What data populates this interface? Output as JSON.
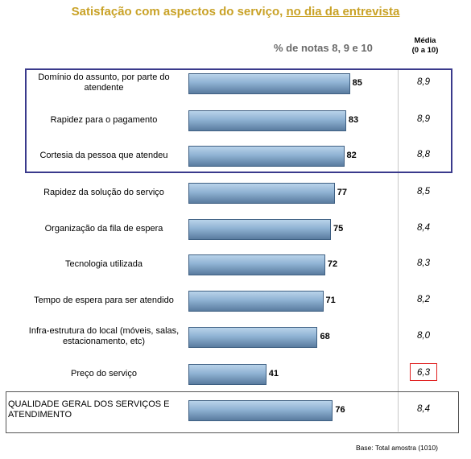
{
  "title_part1": "Satisfação com aspectos do serviço, ",
  "title_part2": "no dia da entrevista",
  "subtitle": "% de notas 8, 9 e 10",
  "media_header_1": "Média",
  "media_header_2": "(0 a 10)",
  "base_note": "Base:  Total amostra (1010)",
  "colors": {
    "title": "#C9A227",
    "bar": "#8fb2d3",
    "highlight_box": "#3a3a8c",
    "avg_highlight": "#e02020"
  },
  "chart_data": {
    "type": "bar",
    "orientation": "horizontal",
    "categories": [
      "Domínio do assunto, por parte do atendente",
      "Rapidez para o pagamento",
      "Cortesia da pessoa que atendeu",
      "Rapidez da solução do serviço",
      "Organização da fila de espera",
      "Tecnologia utilizada",
      "Tempo de espera para ser atendido",
      "Infra-estrutura do local (móveis, salas, estacionamento, etc)",
      "Preço do serviço",
      "QUALIDADE GERAL DOS SERVIÇOS E ATENDIMENTO"
    ],
    "values": [
      85,
      83,
      82,
      77,
      75,
      72,
      71,
      68,
      41,
      76
    ],
    "value_labels": [
      "85",
      "83",
      "82",
      "77",
      "75",
      "72",
      "71",
      "68",
      "41",
      "76"
    ],
    "averages": [
      "8,9",
      "8,9",
      "8,8",
      "8,5",
      "8,4",
      "8,3",
      "8,2",
      "8,0",
      "6,3",
      "8,4"
    ],
    "xlim": [
      0,
      100
    ]
  }
}
